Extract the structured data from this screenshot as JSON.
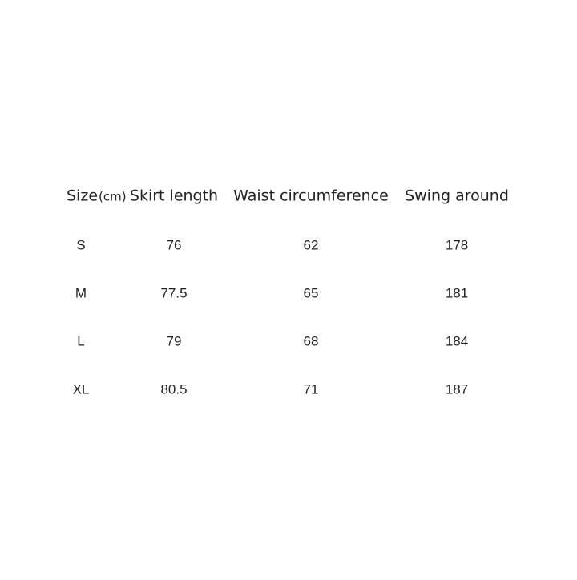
{
  "table": {
    "header": [
      "Size",
      "Skirt length",
      "Waist circumference",
      "Swing around"
    ],
    "unit": "(cm)",
    "rows": [
      [
        "S",
        76,
        62,
        178
      ],
      [
        "M",
        77.5,
        65,
        181
      ],
      [
        "L",
        79,
        68,
        184
      ],
      [
        "XL",
        80.5,
        71,
        187
      ]
    ]
  }
}
